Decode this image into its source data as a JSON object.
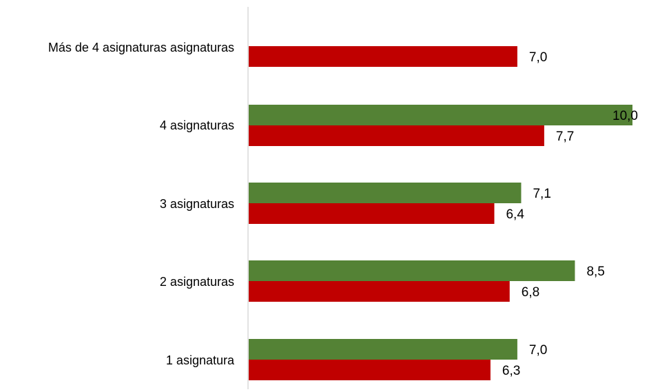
{
  "chart_data": {
    "type": "bar",
    "orientation": "horizontal",
    "categories": [
      "Más  de 4 asignaturas asignaturas",
      "4 asignaturas",
      "3 asignaturas",
      "2 asignaturas",
      "1 asignatura"
    ],
    "series": [
      {
        "color": "#548235",
        "values": [
          null,
          10.0,
          7.1,
          8.5,
          7.0
        ],
        "labels": [
          "",
          "10,0",
          "7,1",
          "8,5",
          "7,0"
        ]
      },
      {
        "color": "#C00000",
        "values": [
          7.0,
          7.7,
          6.4,
          6.8,
          6.3
        ],
        "labels": [
          "7,0",
          "7,7",
          "6,4",
          "6,8",
          "6,3"
        ]
      }
    ],
    "xlim": [
      0,
      10
    ],
    "grid": false,
    "legend": "none",
    "axis_color": "#D9D9D9"
  }
}
